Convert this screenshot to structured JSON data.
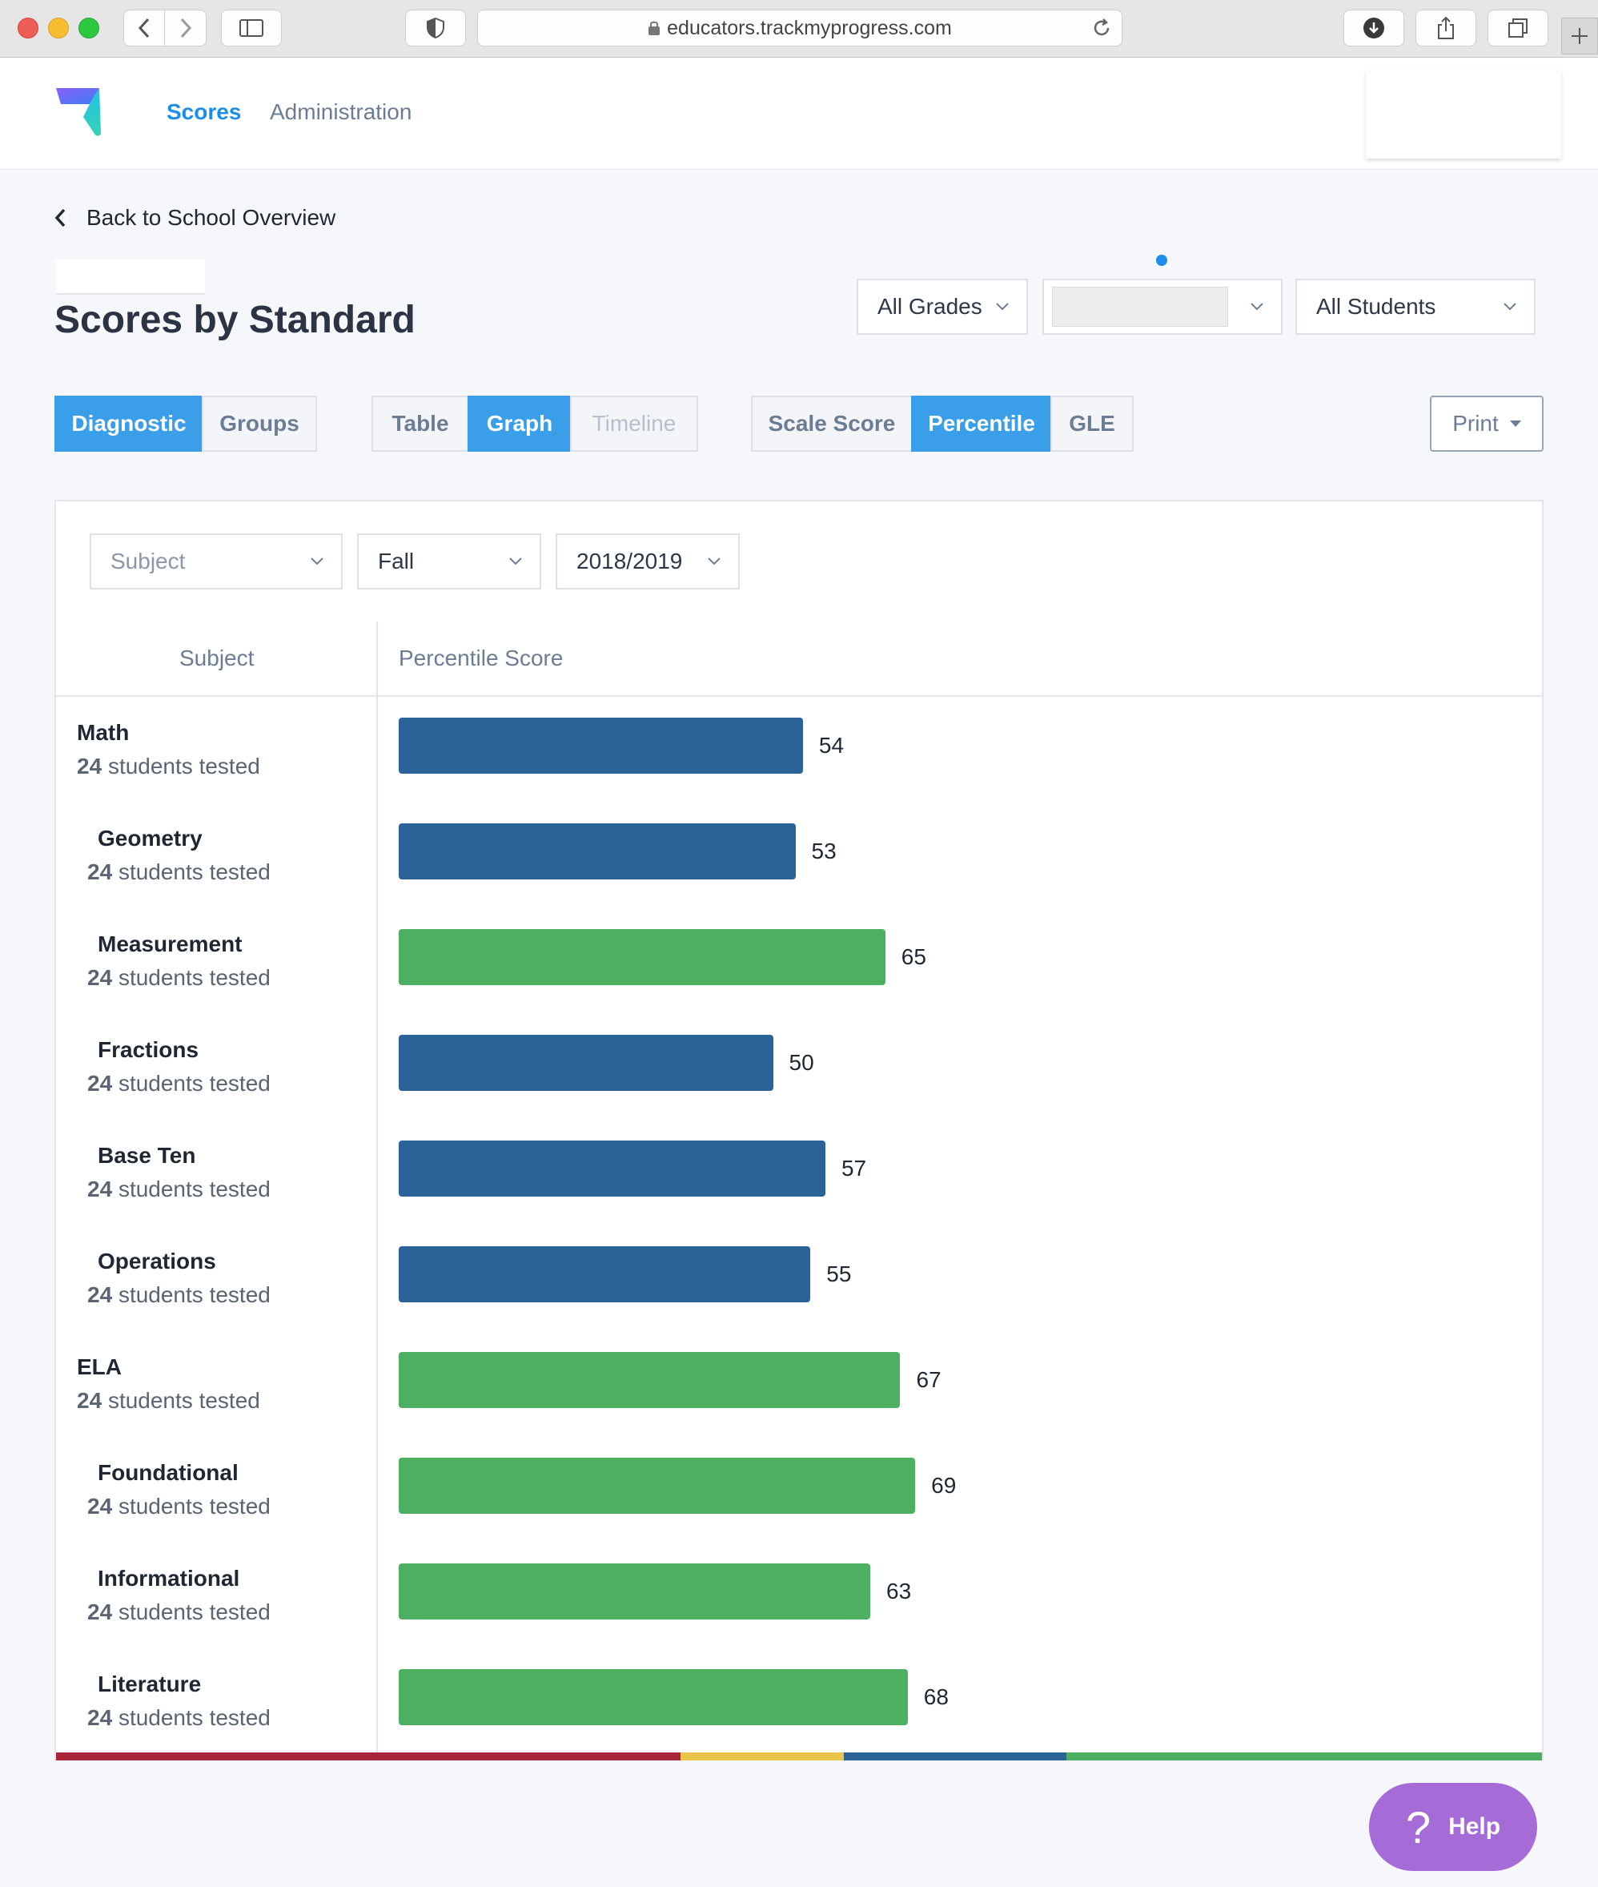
{
  "browser": {
    "url": "educators.trackmyprogress.com"
  },
  "nav": {
    "scores": "Scores",
    "administration": "Administration"
  },
  "page": {
    "back_link": "Back to School Overview",
    "title": "Scores by Standard"
  },
  "filters_top": {
    "grades": "All Grades",
    "students": "All Students"
  },
  "segments": {
    "group1": [
      {
        "label": "Diagnostic",
        "active": true
      },
      {
        "label": "Groups",
        "active": false
      }
    ],
    "group2": [
      {
        "label": "Table",
        "active": false
      },
      {
        "label": "Graph",
        "active": true
      },
      {
        "label": "Timeline",
        "active": false
      }
    ],
    "group3": [
      {
        "label": "Scale Score",
        "active": false
      },
      {
        "label": "Percentile",
        "active": true
      },
      {
        "label": "GLE",
        "active": false
      }
    ],
    "print": "Print"
  },
  "panel_filters": {
    "subject_placeholder": "Subject",
    "season": "Fall",
    "year": "2018/2019"
  },
  "table": {
    "col_subject": "Subject",
    "col_score": "Percentile Score"
  },
  "colors": {
    "below": "#2b6399",
    "above": "#4caf62",
    "accent": "#1a8ee8",
    "band_red": "#a82438",
    "band_yellow": "#e9c44a",
    "band_blue": "#2b6399",
    "band_green": "#4caf62"
  },
  "chart_data": {
    "type": "bar",
    "orientation": "horizontal",
    "xlabel": "Percentile Score",
    "ylabel": "Subject",
    "xlim": [
      0,
      100
    ],
    "categories": [
      "Math",
      "Geometry",
      "Measurement",
      "Fractions",
      "Base Ten",
      "Operations",
      "ELA",
      "Foundational",
      "Informational",
      "Literature"
    ],
    "values": [
      54,
      53,
      65,
      50,
      57,
      55,
      67,
      69,
      63,
      68
    ],
    "students_tested": [
      24,
      24,
      24,
      24,
      24,
      24,
      24,
      24,
      24,
      24
    ],
    "students_tested_suffix": "students tested",
    "parent": [
      true,
      false,
      false,
      false,
      false,
      false,
      true,
      false,
      false,
      false
    ],
    "bar_color": [
      "below",
      "below",
      "above",
      "below",
      "below",
      "below",
      "above",
      "above",
      "above",
      "above"
    ],
    "band_segments": [
      {
        "color": "band_red",
        "to": 42
      },
      {
        "color": "band_yellow",
        "to": 53
      },
      {
        "color": "band_blue",
        "to": 68
      },
      {
        "color": "band_green",
        "to": 100
      }
    ]
  },
  "help": "Help"
}
